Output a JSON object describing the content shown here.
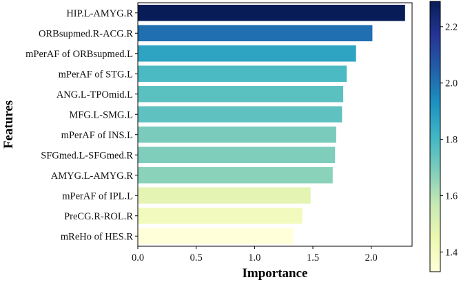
{
  "chart_data": {
    "type": "bar",
    "orientation": "horizontal",
    "xlabel": "Importance",
    "ylabel": "Features",
    "xlim": [
      0,
      2.35
    ],
    "xticks": [
      "0.0",
      "0.5",
      "1.0",
      "1.5",
      "2.0"
    ],
    "xtick_values": [
      0,
      0.5,
      1.0,
      1.5,
      2.0
    ],
    "grid": false,
    "categories": [
      "HIP.L-AMYG.R",
      "ORBsupmed.R-ACG.R",
      "mPerAF of ORBsupmed.L",
      "mPerAF of STG.L",
      "ANG.L-TPOmid.L",
      "MFG.L-SMG.L",
      "mPerAF of INS.L",
      "SFGmed.L-SFGmed.R",
      "AMYG.L-AMYG.R",
      "mPerAF of IPL.L",
      "PreCG.R-ROL.R",
      "mReHo of HES.R"
    ],
    "values": [
      2.29,
      2.01,
      1.87,
      1.79,
      1.76,
      1.75,
      1.7,
      1.69,
      1.67,
      1.48,
      1.41,
      1.33
    ],
    "colorbar": {
      "colormap": "YlGnBu",
      "range": [
        1.33,
        2.29
      ],
      "ticks": [
        "1.4",
        "1.6",
        "1.8",
        "2.0",
        "2.2"
      ],
      "tick_values": [
        1.4,
        1.6,
        1.8,
        2.0,
        2.2
      ]
    }
  }
}
